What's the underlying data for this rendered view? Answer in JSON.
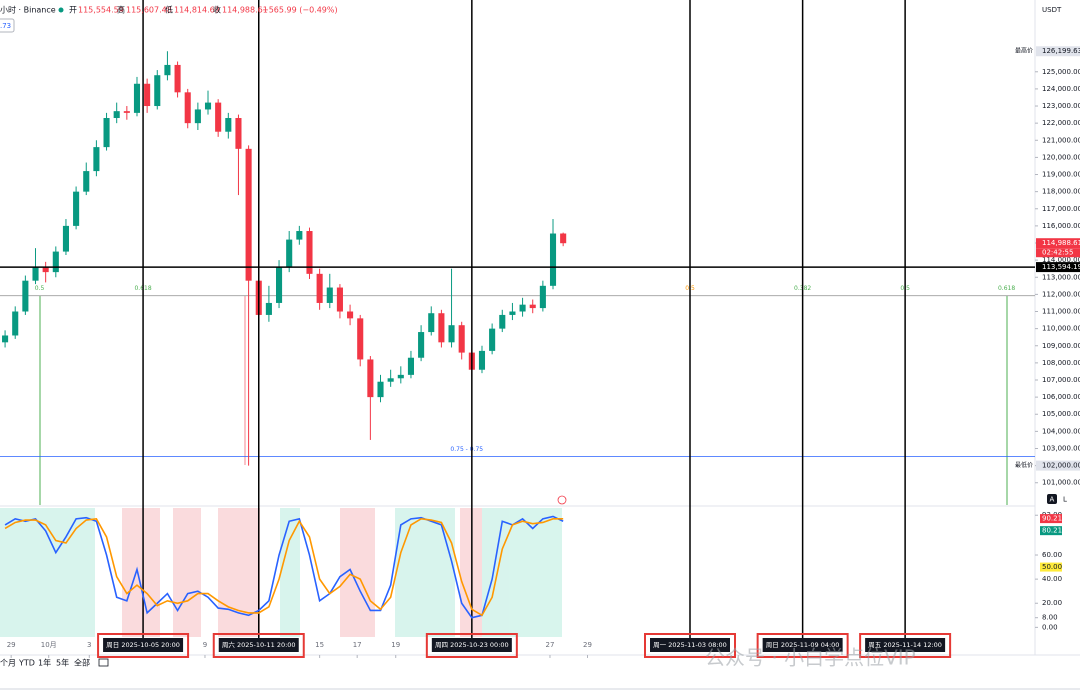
{
  "header": {
    "symbol": "小时 · Binance",
    "open_label": "开",
    "open": "115,554.59",
    "high_label": "高",
    "high": "115,607.48",
    "low_label": "低",
    "low": "114,814.69",
    "close_label": "收",
    "close": "114,988.61",
    "change": "−565.99 (−0.49%)",
    "badge": ".73"
  },
  "toolbar": [
    "个月",
    "YTD",
    "1年",
    "5年",
    "全部"
  ],
  "watermark": "公众号 · 小白学点位VIP",
  "pane_buttons": [
    "A",
    "L"
  ],
  "chart_data": [
    {
      "type": "candlestick",
      "y_unit": "USDT",
      "up_color": "#089981",
      "down_color": "#f23645",
      "open": [
        109200,
        109600,
        111000,
        112800,
        113600,
        113300,
        114500,
        116000,
        118000,
        119200,
        120600,
        122300,
        122700,
        122600,
        124300,
        123000,
        124800,
        125400,
        123800,
        122000,
        122800,
        123200,
        121500,
        122300,
        120500,
        112800,
        110800,
        111500,
        113600,
        115200,
        115700,
        113200,
        111500,
        112400,
        111000,
        110600,
        108200,
        106000,
        106900,
        107100,
        107300,
        108300,
        109800,
        110900,
        109200,
        110200,
        108600,
        107600,
        108700,
        110000,
        110800,
        111000,
        111400,
        111200,
        112500,
        115554.59
      ],
      "high": [
        109900,
        111300,
        113100,
        114700,
        113900,
        114800,
        116400,
        118300,
        119700,
        121000,
        122600,
        123200,
        123000,
        124700,
        124600,
        125100,
        126199.63,
        125600,
        124000,
        123200,
        123900,
        123400,
        122600,
        122500,
        120700,
        113400,
        112500,
        114000,
        115700,
        116000,
        115900,
        113500,
        113200,
        112600,
        111400,
        110800,
        108400,
        107300,
        107600,
        107800,
        108700,
        110200,
        111300,
        111100,
        113500,
        110400,
        108800,
        109000,
        110300,
        111100,
        111500,
        111800,
        111700,
        112800,
        116400,
        115607.48
      ],
      "low": [
        108900,
        109400,
        110800,
        112600,
        112700,
        113000,
        114300,
        115800,
        117800,
        118900,
        120400,
        122000,
        122200,
        122400,
        122600,
        122800,
        124500,
        123500,
        121700,
        121600,
        122500,
        121200,
        121100,
        117800,
        102000,
        110300,
        110400,
        111200,
        113300,
        114900,
        112900,
        111100,
        111200,
        110600,
        110200,
        107800,
        103500,
        105700,
        106600,
        106800,
        107100,
        108100,
        109600,
        108900,
        108900,
        108200,
        107200,
        107400,
        108500,
        109800,
        110500,
        110700,
        110900,
        111000,
        112300,
        114814.69
      ],
      "close": [
        109600,
        111000,
        112800,
        113600,
        113300,
        114500,
        116000,
        118000,
        119200,
        120600,
        122300,
        122700,
        122600,
        124300,
        123000,
        124800,
        125400,
        123800,
        122000,
        122800,
        123200,
        121500,
        122300,
        120500,
        112800,
        110800,
        111500,
        113600,
        115200,
        115700,
        113200,
        111500,
        112400,
        111000,
        110600,
        108200,
        106000,
        106900,
        107100,
        107300,
        108300,
        109800,
        110900,
        109200,
        110200,
        108600,
        107600,
        108700,
        110000,
        110800,
        111000,
        111400,
        111200,
        112500,
        115554.59,
        114988.61
      ],
      "xlim": [
        -0.5,
        101.5
      ],
      "xticks": [
        {
          "value": 0.6,
          "label": "29"
        },
        {
          "value": 4.3,
          "label": "10月"
        },
        {
          "value": 8.3,
          "label": "3"
        },
        {
          "value": 19.7,
          "label": "9"
        },
        {
          "value": 31,
          "label": "15"
        },
        {
          "value": 34.7,
          "label": "17"
        },
        {
          "value": 38.5,
          "label": "19"
        },
        {
          "value": 53.7,
          "label": "27"
        },
        {
          "value": 57.4,
          "label": "29"
        }
      ],
      "ylim": [
        99700,
        128900
      ],
      "yticks": [
        {
          "value": 101000,
          "label": "101,000.00"
        },
        {
          "value": 102000,
          "label": "102,000.00"
        },
        {
          "value": 103000,
          "label": "103,000.00"
        },
        {
          "value": 104000,
          "label": "104,000.00"
        },
        {
          "value": 105000,
          "label": "105,000.00"
        },
        {
          "value": 106000,
          "label": "106,000.00"
        },
        {
          "value": 107000,
          "label": "107,000.00"
        },
        {
          "value": 108000,
          "label": "108,000.00"
        },
        {
          "value": 109000,
          "label": "109,000.00"
        },
        {
          "value": 110000,
          "label": "110,000.00"
        },
        {
          "value": 111000,
          "label": "111,000.00"
        },
        {
          "value": 112000,
          "label": "112,000.00"
        },
        {
          "value": 113000,
          "label": "113,000.00"
        },
        {
          "value": 114000,
          "label": "114,000.00"
        },
        {
          "value": 115000,
          "label": "115,000.00"
        },
        {
          "value": 116000,
          "label": "116,000.00"
        },
        {
          "value": 117000,
          "label": "117,000.00"
        },
        {
          "value": 118000,
          "label": "118,000.00"
        },
        {
          "value": 119000,
          "label": "119,000.00"
        },
        {
          "value": 120000,
          "label": "120,000.00"
        },
        {
          "value": 121000,
          "label": "121,000.00"
        },
        {
          "value": 122000,
          "label": "122,000.00"
        },
        {
          "value": 123000,
          "label": "123,000.00"
        },
        {
          "value": 124000,
          "label": "124,000.00"
        },
        {
          "value": 125000,
          "label": "125,000.00"
        }
      ],
      "price_markers": [
        {
          "value": 126199.63,
          "label": "126,199.63",
          "name": "最高价",
          "color": "#e0e3eb",
          "text_color": "#131722"
        },
        {
          "value": 102000,
          "label": "102,000.00",
          "name": "最低价",
          "color": "#e0e3eb",
          "text_color": "#131722"
        },
        {
          "value": 114988.61,
          "label": "114,988.61",
          "countdown": "02:42:55",
          "color": "#f23645",
          "text_color": "#ffffff"
        },
        {
          "value": 113594.19,
          "label": "113,594.19",
          "color": "#000000",
          "text_color": "#ffffff"
        }
      ],
      "crosshair": 113594.19,
      "fib_levels": [
        {
          "value": 111924,
          "color": "#9e9e9e",
          "labels": [
            {
              "x": 3.4,
              "label": "0.5",
              "color": "#4caf50"
            },
            {
              "x": 13.6,
              "label": "0.618",
              "color": "#4caf50"
            },
            {
              "x": 67.5,
              "label": "0.5",
              "color": "#ff9800"
            },
            {
              "x": 78.6,
              "label": "0.382",
              "color": "#4caf50"
            },
            {
              "x": 88.7,
              "label": "0.5",
              "color": "#4caf50"
            },
            {
              "x": 98.7,
              "label": "0.618",
              "color": "#4caf50"
            }
          ]
        },
        {
          "value": 102525,
          "color": "#2962ff",
          "labels": [
            {
              "x": 45.5,
              "label": "0.75 - 0.75",
              "color": "#2962ff"
            }
          ]
        }
      ],
      "vlines": [
        {
          "x": 13.6,
          "label": "周日 2025-10-05 20:00"
        },
        {
          "x": 25,
          "label": "周六 2025-10-11 20:00"
        },
        {
          "x": 46,
          "label": "周四 2025-10-23 00:00"
        },
        {
          "x": 67.5,
          "label": "周一 2025-11-03 08:00"
        },
        {
          "x": 78.6,
          "label": "周日 2025-11-09 04:00"
        },
        {
          "x": 88.7,
          "label": "周五 2025-11-14 12:00"
        }
      ]
    },
    {
      "type": "line",
      "xlim": [
        -0.5,
        101.5
      ],
      "ylim": [
        -8,
        99
      ],
      "yticks": [
        {
          "value": 93,
          "label": "93.00"
        },
        {
          "value": 60,
          "label": "60.00"
        },
        {
          "value": 40,
          "label": "40.00"
        },
        {
          "value": 20,
          "label": "20.00"
        },
        {
          "value": 8,
          "label": "8.00"
        },
        {
          "value": 0,
          "label": "0.00"
        }
      ],
      "series": [
        {
          "color": "#2962ff",
          "values": [
            85,
            90,
            88,
            90,
            80,
            62,
            75,
            90,
            91,
            88,
            60,
            25,
            22,
            48,
            12,
            20,
            28,
            14,
            28,
            30,
            25,
            16,
            15,
            12,
            10,
            14,
            22,
            60,
            88,
            90,
            60,
            22,
            28,
            42,
            48,
            30,
            14,
            14,
            35,
            85,
            90,
            91,
            88,
            85,
            55,
            20,
            8,
            10,
            40,
            88,
            85,
            90,
            82,
            90,
            92,
            88
          ]
        },
        {
          "color": "#ff9800",
          "values": [
            82,
            87,
            89,
            89,
            85,
            72,
            70,
            82,
            89,
            90,
            75,
            42,
            28,
            35,
            28,
            18,
            22,
            20,
            22,
            28,
            28,
            22,
            17,
            14,
            12,
            12,
            17,
            40,
            72,
            88,
            75,
            40,
            28,
            34,
            44,
            40,
            22,
            15,
            25,
            62,
            85,
            90,
            89,
            87,
            70,
            38,
            15,
            10,
            25,
            65,
            85,
            88,
            86,
            87,
            90,
            90
          ]
        }
      ],
      "markers": [
        {
          "value": 90.21,
          "label": "90.21",
          "color": "#f23645"
        },
        {
          "value": 80.21,
          "label": "80.21",
          "color": "#089981"
        },
        {
          "value": 50,
          "label": "50.00",
          "color": "#ffeb3b"
        }
      ]
    }
  ]
}
